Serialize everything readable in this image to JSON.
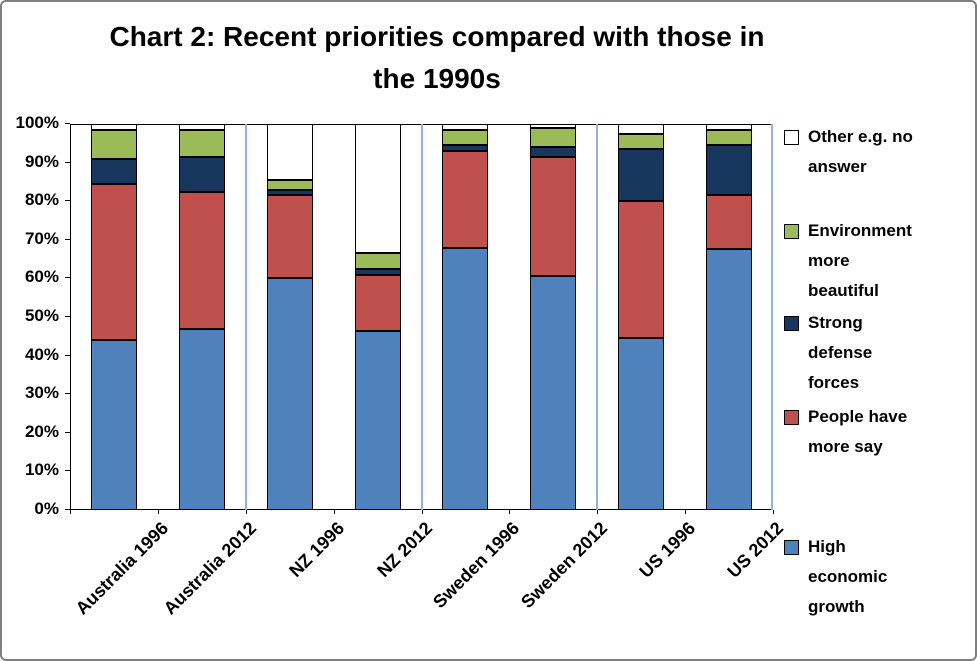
{
  "title": {
    "line1": "Chart 2: Recent priorities compared with those in",
    "line2": "the  1990s"
  },
  "chart_data": {
    "type": "bar",
    "stacked": "100%",
    "title": "Chart 2: Recent priorities compared with those in the  1990s",
    "categories": [
      "Australia 1996",
      "Australia 2012",
      "NZ 1996",
      "NZ 2012",
      "Sweden 1996",
      "Sweden 2012",
      "US 1996",
      "US 2012"
    ],
    "series": [
      {
        "name": "High economic growth",
        "color": "#4F81BD",
        "values": [
          44,
          47,
          60,
          46.5,
          68,
          60.5,
          44.5,
          67.5
        ]
      },
      {
        "name": "People have more say",
        "color": "#C0504D",
        "values": [
          40.5,
          35.5,
          21.5,
          14.5,
          25,
          31,
          35.5,
          14
        ]
      },
      {
        "name": "Strong defense forces",
        "color": "#17375E",
        "values": [
          6.5,
          9,
          1.5,
          1.5,
          1.5,
          2.5,
          13.5,
          13
        ]
      },
      {
        "name": "Environment more beautiful",
        "color": "#9BBB59",
        "values": [
          7.5,
          7,
          2.5,
          4,
          4,
          5,
          4,
          4
        ]
      },
      {
        "name": "Other e.g. no answer",
        "color": "#FFFFFF",
        "values": [
          1.5,
          1.5,
          14.5,
          33.5,
          1.5,
          1,
          2.5,
          1.5
        ]
      }
    ],
    "y_ticks": [
      "0%",
      "10%",
      "20%",
      "30%",
      "40%",
      "50%",
      "60%",
      "70%",
      "80%",
      "90%",
      "100%"
    ],
    "ylim": [
      0,
      100
    ],
    "grid": false,
    "legend_position": "right",
    "legend_order": [
      "Other e.g. no answer",
      "Environment more beautiful",
      "Strong defense forces",
      "People have more say",
      "High economic growth"
    ],
    "group_separators_after_category_index": [
      1,
      3,
      5,
      7
    ],
    "separator_color": "#95B3D7",
    "bar_border_color": "#000000"
  }
}
